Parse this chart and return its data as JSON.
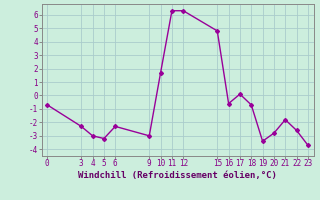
{
  "x": [
    0,
    3,
    4,
    5,
    6,
    9,
    10,
    11,
    12,
    15,
    16,
    17,
    18,
    19,
    20,
    21,
    22,
    23
  ],
  "y": [
    -0.7,
    -2.3,
    -3.0,
    -3.2,
    -2.3,
    -3.0,
    1.7,
    6.3,
    6.3,
    4.8,
    -0.6,
    0.1,
    -0.7,
    -3.4,
    -2.8,
    -1.8,
    -2.6,
    -3.7
  ],
  "line_color": "#990099",
  "marker": "D",
  "marker_size": 2.0,
  "bg_color": "#cceedd",
  "grid_color": "#aacccc",
  "xlabel": "Windchill (Refroidissement éolien,°C)",
  "xticks": [
    0,
    3,
    4,
    5,
    6,
    9,
    10,
    11,
    12,
    15,
    16,
    17,
    18,
    19,
    20,
    21,
    22,
    23
  ],
  "yticks": [
    -4,
    -3,
    -2,
    -1,
    0,
    1,
    2,
    3,
    4,
    5,
    6
  ],
  "xlim": [
    -0.5,
    23.5
  ],
  "ylim": [
    -4.5,
    6.8
  ],
  "tick_fontsize": 5.5,
  "xlabel_fontsize": 6.5,
  "linewidth": 1.0
}
